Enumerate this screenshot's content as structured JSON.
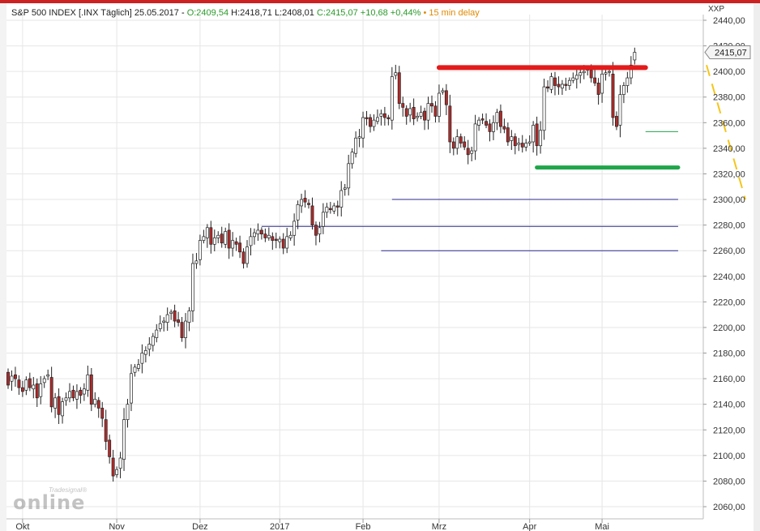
{
  "header": {
    "title": "S&P 500 INDEX [.INX Täglich] 25.05.2017",
    "open": "O:2409,54",
    "hlc": "H:2418,71 L:2408,01",
    "close_change": "C:2415,07 +10,68 +0,44%",
    "delay": "15 min delay",
    "axis_code": "XXP",
    "price_box": "2415,07"
  },
  "logo": {
    "top_text": "Tradesignal®",
    "main_text": "online"
  },
  "colors": {
    "up_candle": "#ffffff",
    "down_candle": "#b22a2a",
    "resistance": "#e31b1b",
    "support": "#1fa64a",
    "level_line": "#2b2b8c",
    "trend_dash": "#f5c518",
    "grid": "#e6e6e6"
  },
  "chart_data": {
    "type": "candlestick",
    "title": "S&P 500 INDEX [.INX Täglich] 25.05.2017",
    "ylim": [
      2050,
      2445
    ],
    "yticks": [
      "2440,00",
      "2420,00",
      "2400,00",
      "2380,00",
      "2360,00",
      "2340,00",
      "2320,00",
      "2300,00",
      "2280,00",
      "2260,00",
      "2240,00",
      "2220,00",
      "2200,00",
      "2180,00",
      "2160,00",
      "2140,00",
      "2120,00",
      "2100,00",
      "2080,00",
      "2060,00"
    ],
    "ytick_values": [
      2440,
      2420,
      2400,
      2380,
      2360,
      2340,
      2320,
      2300,
      2280,
      2260,
      2240,
      2220,
      2200,
      2180,
      2160,
      2140,
      2120,
      2100,
      2080,
      2060
    ],
    "xlabels": [
      "Okt",
      "Nov",
      "Dez",
      "2017",
      "Feb",
      "Mrz",
      "Apr",
      "Mai"
    ],
    "xlabel_index": [
      4,
      30,
      53,
      75,
      98,
      119,
      144,
      164
    ],
    "grid": true,
    "close": [
      2155,
      2162,
      2160,
      2153,
      2150,
      2159,
      2153,
      2155,
      2145,
      2156,
      2160,
      2163,
      2138,
      2145,
      2132,
      2142,
      2145,
      2150,
      2145,
      2150,
      2147,
      2152,
      2163,
      2140,
      2144,
      2137,
      2129,
      2111,
      2099,
      2084,
      2089,
      2098,
      2128,
      2140,
      2164,
      2169,
      2171,
      2180,
      2182,
      2187,
      2193,
      2198,
      2203,
      2205,
      2210,
      2212,
      2205,
      2204,
      2192,
      2205,
      2213,
      2250,
      2252,
      2268,
      2271,
      2278,
      2265,
      2270,
      2272,
      2266,
      2275,
      2262,
      2268,
      2265,
      2259,
      2250,
      2263,
      2271,
      2274,
      2276,
      2273,
      2270,
      2272,
      2268,
      2268,
      2269,
      2262,
      2271,
      2272,
      2283,
      2296,
      2300,
      2298,
      2296,
      2280,
      2272,
      2278,
      2290,
      2294,
      2292,
      2295,
      2294,
      2307,
      2309,
      2328,
      2337,
      2348,
      2349,
      2364,
      2363,
      2357,
      2362,
      2364,
      2367,
      2364,
      2363,
      2396,
      2399,
      2375,
      2372,
      2365,
      2371,
      2363,
      2365,
      2368,
      2362,
      2375,
      2373,
      2365,
      2383,
      2385,
      2374,
      2345,
      2340,
      2349,
      2344,
      2341,
      2335,
      2338,
      2359,
      2362,
      2362,
      2358,
      2353,
      2360,
      2368,
      2357,
      2355,
      2345,
      2349,
      2342,
      2344,
      2341,
      2344,
      2345,
      2358,
      2342,
      2354,
      2388,
      2387,
      2396,
      2389,
      2388,
      2390,
      2389,
      2393,
      2395,
      2397,
      2399,
      2400,
      2402,
      2395,
      2391,
      2382,
      2398,
      2399,
      2400,
      2364,
      2357,
      2382,
      2389,
      2395,
      2405,
      2415
    ],
    "open": [
      2165,
      2158,
      2163,
      2159,
      2153,
      2151,
      2160,
      2152,
      2156,
      2146,
      2157,
      2162,
      2161,
      2137,
      2146,
      2131,
      2143,
      2145,
      2151,
      2144,
      2151,
      2148,
      2151,
      2163,
      2140,
      2143,
      2137,
      2128,
      2112,
      2098,
      2085,
      2090,
      2097,
      2128,
      2141,
      2165,
      2168,
      2172,
      2179,
      2183,
      2186,
      2192,
      2199,
      2204,
      2204,
      2211,
      2213,
      2206,
      2204,
      2192,
      2204,
      2213,
      2250,
      2253,
      2268,
      2270,
      2278,
      2265,
      2270,
      2273,
      2265,
      2276,
      2262,
      2267,
      2266,
      2259,
      2250,
      2264,
      2271,
      2273,
      2276,
      2273,
      2270,
      2271,
      2269,
      2267,
      2269,
      2262,
      2270,
      2272,
      2284,
      2295,
      2301,
      2297,
      2295,
      2280,
      2273,
      2279,
      2290,
      2293,
      2291,
      2295,
      2294,
      2308,
      2309,
      2328,
      2336,
      2348,
      2348,
      2364,
      2364,
      2357,
      2361,
      2365,
      2367,
      2364,
      2362,
      2397,
      2399,
      2375,
      2371,
      2366,
      2372,
      2364,
      2365,
      2369,
      2362,
      2375,
      2373,
      2365,
      2384,
      2385,
      2373,
      2345,
      2340,
      2349,
      2345,
      2340,
      2336,
      2338,
      2358,
      2363,
      2361,
      2359,
      2353,
      2360,
      2369,
      2357,
      2356,
      2346,
      2349,
      2343,
      2344,
      2341,
      2344,
      2345,
      2359,
      2342,
      2354,
      2388,
      2386,
      2395,
      2390,
      2387,
      2390,
      2389,
      2393,
      2394,
      2397,
      2399,
      2401,
      2401,
      2395,
      2391,
      2383,
      2398,
      2400,
      2398,
      2365,
      2358,
      2382,
      2389,
      2395,
      2409
    ]
  },
  "annotations": {
    "resistance": {
      "from_index": 119,
      "to_index": 176,
      "value": 2403
    },
    "support": {
      "from_index": 146,
      "to_index": 185,
      "value": 2325
    },
    "support_short": {
      "from_index": 176,
      "to_index": 185,
      "value": 2353
    },
    "levels": [
      {
        "from_index": 106,
        "to_index": 185,
        "value": 2300
      },
      {
        "from_index": 70,
        "to_index": 185,
        "value": 2279
      },
      {
        "from_index": 103,
        "to_index": 185,
        "value": 2260
      }
    ],
    "trend_dash": {
      "from_value": 2405,
      "to_value": 2300
    }
  }
}
